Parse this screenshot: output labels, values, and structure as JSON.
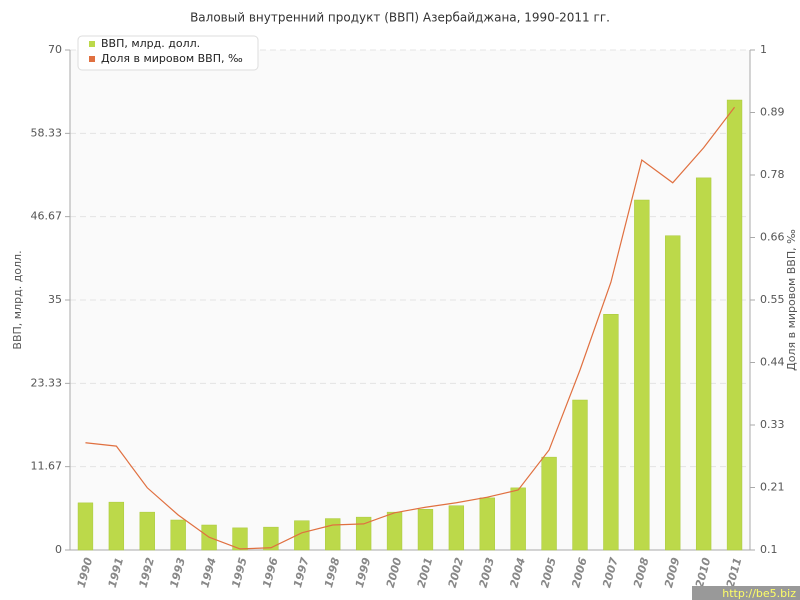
{
  "chart_data": {
    "type": "bar-line",
    "title": "Валовый внутренний продукт (ВВП) Азербайджана, 1990-2011 гг.",
    "y_label": "ВВП, млрд. долл.",
    "y2_label": "Доля в мировом ВВП, ‰",
    "categories": [
      "1990",
      "1991",
      "1992",
      "1993",
      "1994",
      "1995",
      "1996",
      "1997",
      "1998",
      "1999",
      "2000",
      "2001",
      "2002",
      "2003",
      "2004",
      "2005",
      "2006",
      "2007",
      "2008",
      "2009",
      "2010",
      "2011"
    ],
    "series": [
      {
        "name": "ВВП, млрд. долл.",
        "type": "bar",
        "color": "#bcd94a",
        "values": [
          6.6,
          6.7,
          5.3,
          4.2,
          3.5,
          3.1,
          3.2,
          4.1,
          4.4,
          4.6,
          5.3,
          5.7,
          6.2,
          7.3,
          8.7,
          13.0,
          21.0,
          33.0,
          49.0,
          44.0,
          52.1,
          63.0
        ]
      },
      {
        "name": "Доля в мировом ВВП, ‰",
        "type": "line",
        "axis": "y2",
        "color": "#e07040",
        "values": [
          0.293,
          0.287,
          0.212,
          0.163,
          0.123,
          0.102,
          0.104,
          0.131,
          0.145,
          0.147,
          0.167,
          0.177,
          0.185,
          0.195,
          0.208,
          0.28,
          0.424,
          0.582,
          0.802,
          0.761,
          0.824,
          0.897
        ]
      }
    ],
    "ylim": [
      0,
      70
    ],
    "yticks": [
      0,
      11.67,
      23.33,
      35,
      46.67,
      58.33,
      70
    ],
    "y2lim": [
      0.1,
      1
    ],
    "y2ticks": [
      0.1,
      {
        "value": 0.2125,
        "label": "0.21"
      },
      {
        "value": 0.325,
        "label": "0.33"
      },
      {
        "value": 0.4375,
        "label": "0.44"
      },
      0.55,
      {
        "value": 0.6625,
        "label": "0.66"
      },
      {
        "value": 0.775,
        "label": "0.78"
      },
      {
        "value": 0.8875,
        "label": "0.89"
      },
      1
    ],
    "grid": true,
    "legend": "top-left",
    "watermark": "http://be5.biz"
  }
}
